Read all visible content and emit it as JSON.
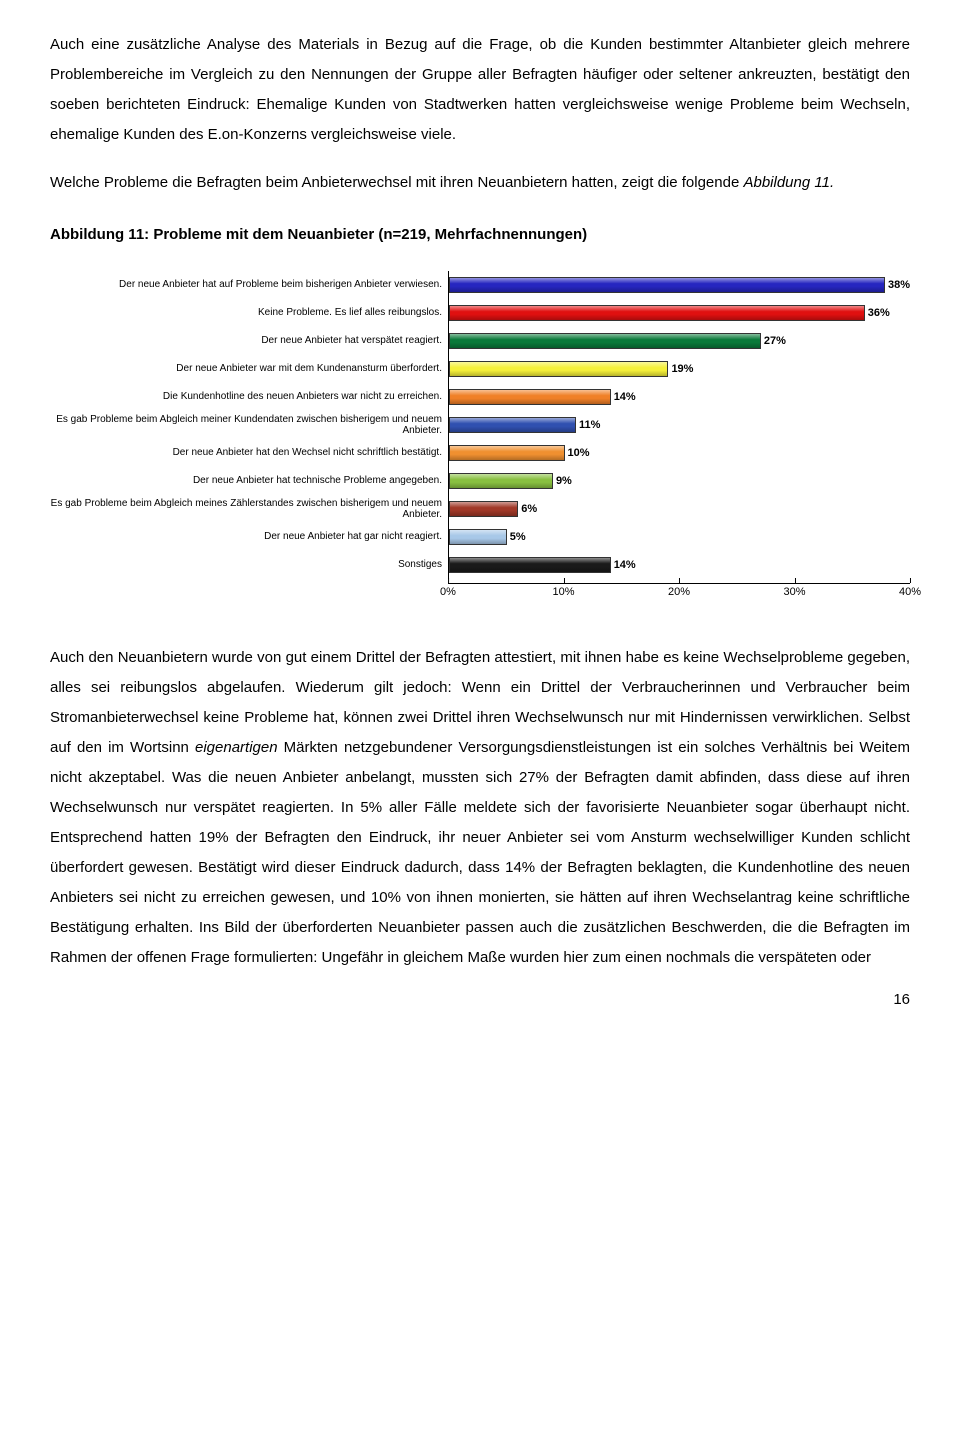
{
  "para1": "Auch eine zusätzliche Analyse des Materials in Bezug auf die Frage, ob die Kunden bestimmter Altanbieter gleich mehrere Problembereiche im Vergleich zu den Nennungen der Gruppe aller Befragten häufiger oder seltener ankreuzten, bestätigt den soeben berichteten Eindruck: Ehemalige Kunden von Stadtwerken hatten vergleichsweise wenige Probleme beim Wechseln, ehemalige Kunden des E.on-Konzerns vergleichsweise viele.",
  "para2_a": "Welche Probleme die Befragten beim Anbieterwechsel mit ihren Neuanbietern hatten, zeigt die folgende ",
  "para2_italic": "Abbildung 11.",
  "chart": {
    "title": "Abbildung 11: Probleme mit dem Neuanbieter (n=219, Mehrfachnennungen)",
    "type": "bar",
    "xlim": 40,
    "ticks": [
      0,
      10,
      20,
      30,
      40
    ],
    "tick_labels": [
      "0%",
      "10%",
      "20%",
      "30%",
      "40%"
    ],
    "items": [
      {
        "label": "Der neue Anbieter hat auf Probleme beim bisherigen Anbieter verwiesen.",
        "value": 38,
        "pct": "38%",
        "fill": "#2626c0"
      },
      {
        "label": "Keine Probleme. Es lief alles reibungslos.",
        "value": 36,
        "pct": "36%",
        "fill": "#e01010"
      },
      {
        "label": "Der neue Anbieter hat verspätet reagiert.",
        "value": 27,
        "pct": "27%",
        "fill": "#0a7a3a"
      },
      {
        "label": "Der neue Anbieter war mit dem Kundenansturm überfordert.",
        "value": 19,
        "pct": "19%",
        "fill": "#f5f03a"
      },
      {
        "label": "Die Kundenhotline des neuen Anbieters war nicht zu erreichen.",
        "value": 14,
        "pct": "14%",
        "fill": "#f08028"
      },
      {
        "label": "Es gab Probleme beim Abgleich meiner Kundendaten zwischen bisherigem und neuem Anbieter.",
        "value": 11,
        "pct": "11%",
        "fill": "#3050b0"
      },
      {
        "label": "Der neue Anbieter hat den Wechsel nicht schriftlich bestätigt.",
        "value": 10,
        "pct": "10%",
        "fill": "#f09030"
      },
      {
        "label": "Der neue Anbieter hat technische Probleme angegeben.",
        "value": 9,
        "pct": "9%",
        "fill": "#88c040"
      },
      {
        "label": "Es gab Probleme beim Abgleich meines Zählerstandes zwischen bisherigem und neuem Anbieter.",
        "value": 6,
        "pct": "6%",
        "fill": "#a03828"
      },
      {
        "label": "Der neue Anbieter hat gar nicht reagiert.",
        "value": 5,
        "pct": "5%",
        "fill": "#a8c8e8"
      },
      {
        "label": "Sonstiges",
        "value": 14,
        "pct": "14%",
        "fill": "#1a1a1a"
      }
    ]
  },
  "para3_a": "Auch den Neuanbietern wurde von gut einem Drittel der Befragten attestiert, mit ihnen habe es keine Wechselprobleme gegeben, alles sei reibungslos abgelaufen. Wiederum gilt jedoch: Wenn ein Drittel der Verbraucherinnen und Verbraucher beim Stromanbieterwechsel keine Probleme hat, können zwei Drittel ihren Wechselwunsch nur mit Hindernissen verwirklichen. Selbst auf den im Wortsinn ",
  "para3_italic": "eigenartigen",
  "para3_b": " Märkten netzgebundener Versorgungsdienstleistungen ist ein solches Verhältnis bei Weitem nicht akzeptabel. Was die neuen Anbieter anbelangt, mussten sich 27% der Befragten damit abfinden, dass diese auf ihren Wechselwunsch nur verspätet reagierten. In 5% aller Fälle meldete sich der favorisierte Neuanbieter sogar überhaupt nicht. Entsprechend hatten 19% der Befragten den Eindruck, ihr neuer Anbieter sei vom Ansturm wechselwilliger Kunden schlicht überfordert gewesen. Bestätigt wird dieser Eindruck dadurch, dass 14% der Befragten beklagten, die Kundenhotline des neuen Anbieters sei nicht zu erreichen gewesen, und 10% von ihnen monierten, sie hätten auf ihren Wechselantrag keine schriftliche Bestätigung erhalten. Ins Bild der überforderten Neuanbieter passen auch die zusätzlichen Beschwerden, die die Befragten im Rahmen der offenen Frage formulierten: Ungefähr in gleichem Maße wurden hier zum einen nochmals die verspäteten oder",
  "page_number": "16"
}
